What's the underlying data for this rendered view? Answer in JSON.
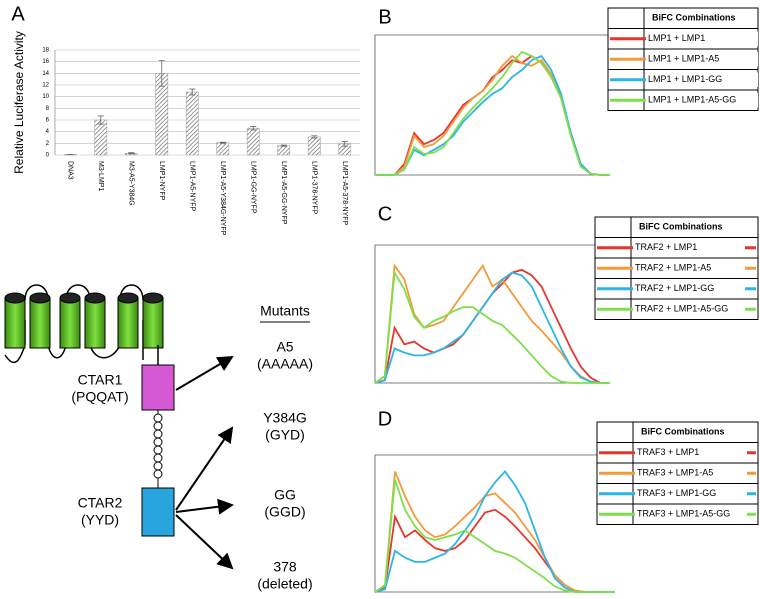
{
  "chart_data": [
    {
      "type": "bar",
      "label": "A",
      "ylabel": "Relative Luciferase Activity",
      "categories": [
        "DNA3",
        "M3-LMP1",
        "M3-A5-Y384G",
        "LMP1-NYFP",
        "LMP1-A5-NYFP",
        "LMP1-A5-Y384G-NYFP",
        "LMP1-GG-NYFP",
        "LMP1-A5-GG-NYFP",
        "LMP1-378-NYFP",
        "LMP1-A5-378-NYFP"
      ],
      "values": [
        0.1,
        6,
        0.3,
        14,
        10.8,
        2.1,
        4.6,
        1.6,
        3.1,
        1.9
      ],
      "errors": [
        0,
        0.7,
        0.1,
        2.2,
        0.5,
        0.1,
        0.3,
        0.1,
        0.2,
        0.4
      ],
      "color": "#999999",
      "ylim": [
        0,
        18
      ],
      "yticks": [
        0,
        2,
        4,
        6,
        8,
        10,
        12,
        14,
        16,
        18
      ],
      "grid": true
    },
    {
      "type": "line",
      "label": "B",
      "legend_title": "BiFC Combinations",
      "legend": "upper right",
      "ylim": [
        0,
        100
      ],
      "series": [
        {
          "name": "LMP1 + LMP1",
          "color": "#e8352b",
          "values": [
            0,
            0,
            0,
            8,
            30,
            22,
            25,
            30,
            40,
            50,
            55,
            60,
            70,
            75,
            82,
            80,
            85,
            80,
            70,
            55,
            30,
            8,
            1,
            0,
            0
          ]
        },
        {
          "name": "LMP1 + LMP1-A5",
          "color": "#f39a3a",
          "values": [
            0,
            0,
            0,
            6,
            28,
            20,
            22,
            28,
            38,
            48,
            55,
            60,
            68,
            78,
            85,
            80,
            78,
            82,
            72,
            55,
            30,
            8,
            1,
            0,
            0
          ]
        },
        {
          "name": "LMP1 + LMP1-GG",
          "color": "#2cb5e8",
          "values": [
            0,
            0,
            0,
            4,
            18,
            14,
            18,
            22,
            28,
            38,
            45,
            52,
            58,
            62,
            70,
            75,
            82,
            85,
            75,
            58,
            30,
            8,
            1,
            0,
            0
          ]
        },
        {
          "name": "LMP1 + LMP1-A5-GG",
          "color": "#7de04a",
          "values": [
            0,
            0,
            0,
            4,
            20,
            15,
            16,
            20,
            30,
            40,
            48,
            55,
            62,
            70,
            80,
            88,
            85,
            80,
            70,
            55,
            28,
            6,
            1,
            0,
            0
          ]
        }
      ]
    },
    {
      "type": "line",
      "label": "C",
      "legend_title": "BiFC Combinations",
      "legend": "upper right",
      "ylim": [
        0,
        100
      ],
      "series": [
        {
          "name": "TRAF2 + LMP1",
          "color": "#e8352b",
          "values": [
            0,
            2,
            40,
            28,
            30,
            25,
            22,
            25,
            28,
            35,
            45,
            55,
            65,
            72,
            80,
            82,
            78,
            70,
            55,
            40,
            25,
            12,
            4,
            0,
            0
          ]
        },
        {
          "name": "TRAF2 + LMP1-A5",
          "color": "#f39a3a",
          "values": [
            0,
            5,
            85,
            75,
            50,
            40,
            42,
            45,
            55,
            65,
            75,
            85,
            70,
            75,
            65,
            55,
            45,
            38,
            30,
            22,
            12,
            5,
            1,
            0,
            0
          ]
        },
        {
          "name": "TRAF2 + LMP1-GG",
          "color": "#2cb5e8",
          "values": [
            0,
            2,
            25,
            22,
            20,
            20,
            22,
            25,
            30,
            35,
            45,
            55,
            65,
            75,
            80,
            78,
            70,
            55,
            40,
            25,
            12,
            4,
            1,
            0,
            0
          ]
        },
        {
          "name": "TRAF2 + LMP1-A5-GG",
          "color": "#7de04a",
          "values": [
            0,
            5,
            80,
            68,
            48,
            40,
            45,
            48,
            52,
            55,
            55,
            50,
            45,
            42,
            35,
            28,
            20,
            12,
            5,
            1,
            0,
            0,
            0,
            0,
            0
          ]
        }
      ]
    },
    {
      "type": "line",
      "label": "D",
      "legend_title": "BiFC Combinations",
      "legend": "upper right",
      "ylim": [
        0,
        100
      ],
      "series": [
        {
          "name": "TRAF3 + LMP1",
          "color": "#e8352b",
          "values": [
            0,
            3,
            55,
            40,
            45,
            38,
            32,
            30,
            32,
            38,
            48,
            58,
            60,
            55,
            48,
            40,
            32,
            22,
            12,
            5,
            1,
            0,
            0,
            0,
            0
          ]
        },
        {
          "name": "TRAF3 + LMP1-A5",
          "color": "#f39a3a",
          "values": [
            0,
            5,
            88,
            70,
            55,
            45,
            40,
            42,
            48,
            55,
            62,
            70,
            72,
            65,
            58,
            48,
            38,
            25,
            12,
            5,
            1,
            0,
            0,
            0,
            0
          ]
        },
        {
          "name": "TRAF3 + LMP1-GG",
          "color": "#2cb5e8",
          "values": [
            0,
            2,
            30,
            25,
            22,
            22,
            25,
            28,
            35,
            45,
            55,
            70,
            80,
            88,
            78,
            65,
            45,
            25,
            10,
            3,
            0,
            0,
            0,
            0,
            0
          ]
        },
        {
          "name": "TRAF3 + LMP1-A5-GG",
          "color": "#7de04a",
          "values": [
            0,
            5,
            82,
            60,
            48,
            40,
            38,
            40,
            42,
            45,
            40,
            35,
            30,
            28,
            25,
            20,
            15,
            10,
            4,
            1,
            0,
            0,
            0,
            0,
            0
          ]
        }
      ]
    }
  ],
  "diagram": {
    "mutants_title": "Mutants",
    "ctars": [
      {
        "name": "CTAR1",
        "motif": "(PQQAT)"
      },
      {
        "name": "CTAR2",
        "motif": "(YYD)"
      }
    ],
    "mutants": [
      {
        "name": "A5",
        "detail": "(AAAAA)"
      },
      {
        "name": "Y384G",
        "detail": "(GYD)"
      },
      {
        "name": "GG",
        "detail": "(GGD)"
      },
      {
        "name": "378",
        "detail": "(deleted)"
      }
    ]
  }
}
